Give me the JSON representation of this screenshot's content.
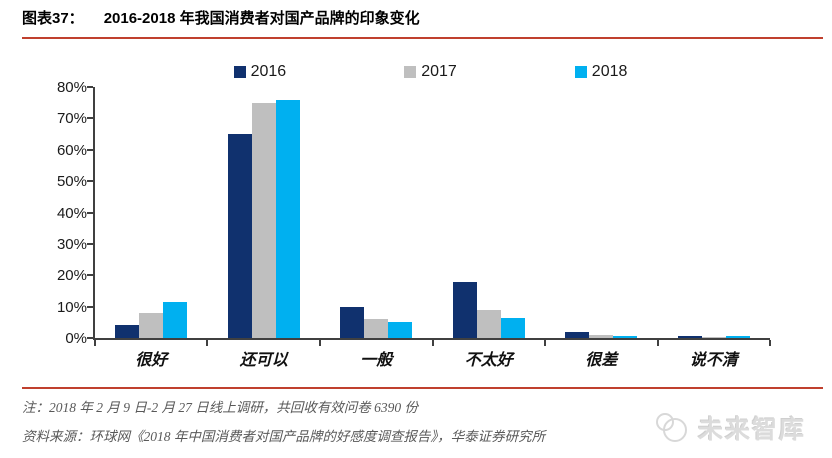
{
  "header": {
    "figure_label": "图表37：",
    "title": "2016-2018 年我国消费者对国产品牌的印象变化"
  },
  "chart_data": {
    "type": "bar",
    "title": "2016-2018 年我国消费者对国产品牌的印象变化",
    "categories": [
      "很好",
      "还可以",
      "一般",
      "不太好",
      "很差",
      "说不清"
    ],
    "series": [
      {
        "name": "2016",
        "color": "#10316E",
        "values": [
          4,
          65,
          10,
          18,
          2,
          0.5
        ]
      },
      {
        "name": "2017",
        "color": "#BFBFBF",
        "values": [
          8,
          75,
          6,
          9,
          1,
          0.2
        ]
      },
      {
        "name": "2018",
        "color": "#00B0F0",
        "values": [
          11.5,
          76,
          5,
          6.5,
          0.5,
          0.5
        ]
      }
    ],
    "xlabel": "",
    "ylabel": "",
    "ylim": [
      0,
      80
    ],
    "y_ticks": [
      "80%",
      "70%",
      "60%",
      "50%",
      "40%",
      "30%",
      "20%",
      "10%",
      "0%"
    ],
    "grid": false,
    "legend_position": "top"
  },
  "footer": {
    "note": "注：2018 年 2 月 9 日-2 月 27 日线上调研，共回收有效问卷 6390 份",
    "source": "资料来源：环球网《2018 年中国消费者对国产品牌的好感度调查报告》，华泰证券研究所",
    "watermark": "未来智库"
  },
  "colors": {
    "accent_line": "#C0402E",
    "axis": "#404040",
    "note_text": "#595959",
    "series_2016": "#10316E",
    "series_2017": "#BFBFBF",
    "series_2018": "#00B0F0"
  }
}
